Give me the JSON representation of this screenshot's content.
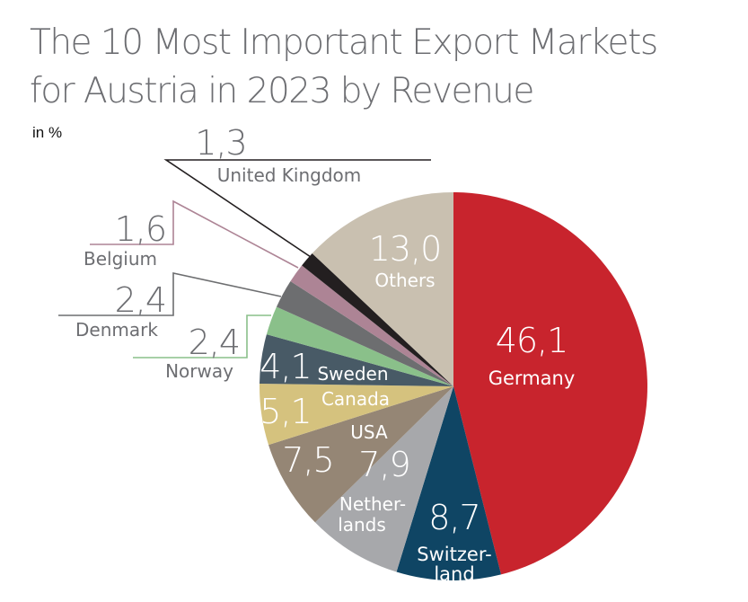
{
  "title_line1": "The 10 Most Important Export Markets",
  "title_line2": "for Austria in 2023 by Revenue",
  "unit": "in %",
  "chart_data": {
    "type": "pie",
    "title": "The 10 Most Important Export Markets for Austria in 2023 by Revenue",
    "unit": "in %",
    "start": "top",
    "direction": "clockwise",
    "slices": [
      {
        "label": "Germany",
        "value": 46.1,
        "display": "46,1",
        "color": "#c8242d"
      },
      {
        "label": "Switzer-\nland",
        "value": 8.7,
        "display": "8,7",
        "color": "#0f4564"
      },
      {
        "label": "Nether-\nlands",
        "value": 7.9,
        "display": "7,9",
        "color": "#a7a8ab"
      },
      {
        "label": "USA",
        "value": 7.5,
        "display": "7,5",
        "color": "#958675"
      },
      {
        "label": "Canada",
        "value": 5.1,
        "display": "5,1",
        "color": "#d5c27e"
      },
      {
        "label": "Sweden",
        "value": 4.1,
        "display": "4,1",
        "color": "#485a66"
      },
      {
        "label": "Norway",
        "value": 2.4,
        "display": "2,4",
        "color": "#8ac08a"
      },
      {
        "label": "Denmark",
        "value": 2.4,
        "display": "2,4",
        "color": "#6d6e70"
      },
      {
        "label": "Belgium",
        "value": 1.6,
        "display": "1,6",
        "color": "#ad8495"
      },
      {
        "label": "United Kingdom",
        "value": 1.3,
        "display": "1,3",
        "color": "#231f20"
      },
      {
        "label": "Others",
        "value": 13.0,
        "display": "13,0",
        "color": "#c9c0b0"
      }
    ]
  }
}
